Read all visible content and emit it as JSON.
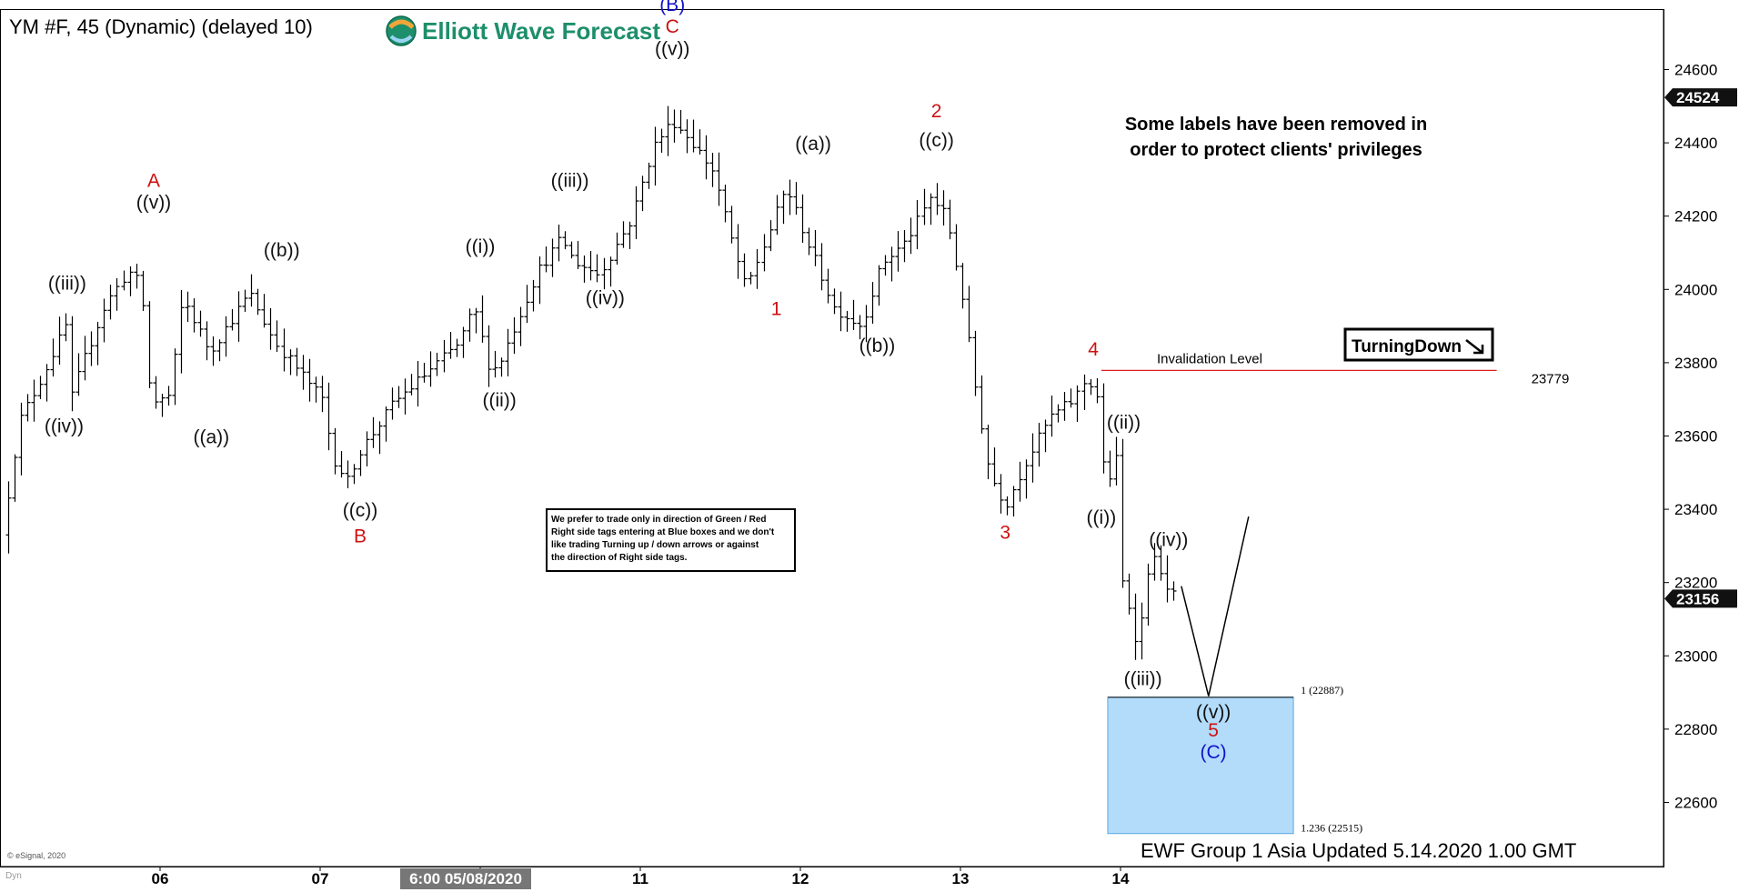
{
  "header": {
    "symbol_title": "YM #F, 45 (Dynamic) (delayed 10)",
    "logo_text": "Elliott Wave Forecast"
  },
  "notes": {
    "labels_removed": [
      "Some labels have been removed in",
      "order to protect clients' privileges"
    ],
    "trade_note": [
      "We prefer to trade only in direction of Green / Red",
      "Right side tags entering at Blue boxes and we don't",
      "like trading Turning up / down arrows or against",
      "the direction of Right side tags."
    ],
    "turning_badge": "TurningDown",
    "footer": "EWF Group 1 Asia Updated 5.14.2020 1.00 GMT",
    "esignal": "© eSignal, 2020",
    "dyn": "Dyn"
  },
  "chart_data": {
    "type": "bar",
    "title": "YM #F, 45 (Dynamic) (delayed 10)",
    "xlabel": "",
    "ylabel": "",
    "ylim": [
      22425,
      24765
    ],
    "y_ticks": [
      22600,
      22800,
      23000,
      23200,
      23400,
      23600,
      23800,
      24000,
      24200,
      24400,
      24600
    ],
    "x_ticks": [
      {
        "label": "06",
        "t": 5.0
      },
      {
        "label": "07",
        "t": 6.0
      },
      {
        "label": "6:00 05/08/2020",
        "t": 7.0,
        "highlight": true
      },
      {
        "label": "11",
        "t": 8.0
      },
      {
        "label": "12",
        "t": 9.0
      },
      {
        "label": "13",
        "t": 10.0
      },
      {
        "label": "14",
        "t": 11.0
      }
    ],
    "price_tags": [
      {
        "label": "24524",
        "value": 24524
      },
      {
        "label": "23156",
        "value": 23156
      }
    ],
    "price_path": [
      [
        4.05,
        23330
      ],
      [
        4.16,
        23640
      ],
      [
        4.3,
        23760
      ],
      [
        4.45,
        23900
      ],
      [
        4.47,
        23680
      ],
      [
        4.55,
        23790
      ],
      [
        4.7,
        23960
      ],
      [
        4.84,
        24050
      ],
      [
        4.92,
        24010
      ],
      [
        4.98,
        23690
      ],
      [
        5.1,
        23710
      ],
      [
        5.18,
        23980
      ],
      [
        5.35,
        23830
      ],
      [
        5.6,
        23990
      ],
      [
        5.75,
        23860
      ],
      [
        5.92,
        23770
      ],
      [
        6.05,
        23700
      ],
      [
        6.12,
        23540
      ],
      [
        6.22,
        23470
      ],
      [
        6.26,
        23540
      ],
      [
        6.5,
        23690
      ],
      [
        6.9,
        23850
      ],
      [
        7.0,
        23950
      ],
      [
        7.1,
        23780
      ],
      [
        7.15,
        23790
      ],
      [
        7.4,
        24050
      ],
      [
        7.55,
        24140
      ],
      [
        7.62,
        24080
      ],
      [
        7.78,
        24040
      ],
      [
        7.98,
        24190
      ],
      [
        8.12,
        24390
      ],
      [
        8.24,
        24460
      ],
      [
        8.35,
        24410
      ],
      [
        8.5,
        24320
      ],
      [
        8.6,
        24150
      ],
      [
        8.7,
        24000
      ],
      [
        8.82,
        24130
      ],
      [
        8.95,
        24280
      ],
      [
        9.1,
        24110
      ],
      [
        9.25,
        23950
      ],
      [
        9.42,
        23900
      ],
      [
        9.55,
        24070
      ],
      [
        9.7,
        24130
      ],
      [
        9.85,
        24250
      ],
      [
        9.95,
        24200
      ],
      [
        10.05,
        23980
      ],
      [
        10.12,
        23760
      ],
      [
        10.22,
        23500
      ],
      [
        10.32,
        23410
      ],
      [
        10.45,
        23530
      ],
      [
        10.6,
        23650
      ],
      [
        10.75,
        23700
      ],
      [
        10.83,
        23760
      ],
      [
        10.9,
        23700
      ],
      [
        10.95,
        23400
      ],
      [
        11.0,
        23620
      ],
      [
        11.05,
        23200
      ],
      [
        11.1,
        23120
      ],
      [
        11.15,
        23010
      ],
      [
        11.2,
        23230
      ],
      [
        11.27,
        23270
      ],
      [
        11.33,
        23170
      ]
    ],
    "projection_path": [
      [
        11.38,
        23190
      ],
      [
        11.55,
        22890
      ],
      [
        11.8,
        23380
      ]
    ],
    "blue_box": {
      "t0": 10.92,
      "t1": 12.08,
      "top": 22887,
      "bottom": 22515,
      "top_label": "1 (22887)",
      "bottom_label": "1.236 (22515)"
    },
    "invalidation": {
      "label": "Invalidation Level",
      "value": 23779,
      "value_label": "23779",
      "t0": 10.88,
      "t1": 13.35
    },
    "annotations": [
      {
        "text": "(B)",
        "t": 8.2,
        "y": 24760,
        "color": "#1111cc"
      },
      {
        "text": "C",
        "t": 8.2,
        "y": 24700,
        "color": "#cc1111"
      },
      {
        "text": "((v))",
        "t": 8.2,
        "y": 24640,
        "color": "#111111"
      },
      {
        "text": "A",
        "t": 4.96,
        "y": 24280,
        "color": "#cc1111"
      },
      {
        "text": "((v))",
        "t": 4.96,
        "y": 24220,
        "color": "#111111"
      },
      {
        "text": "((iii))",
        "t": 4.42,
        "y": 24000,
        "color": "#111111"
      },
      {
        "text": "((iv))",
        "t": 4.4,
        "y": 23610,
        "color": "#111111"
      },
      {
        "text": "((a))",
        "t": 5.32,
        "y": 23580,
        "color": "#111111"
      },
      {
        "text": "((b))",
        "t": 5.76,
        "y": 24090,
        "color": "#111111"
      },
      {
        "text": "((c))",
        "t": 6.25,
        "y": 23380,
        "color": "#111111"
      },
      {
        "text": "B",
        "t": 6.25,
        "y": 23310,
        "color": "#cc1111"
      },
      {
        "text": "((i))",
        "t": 7.0,
        "y": 24100,
        "color": "#111111"
      },
      {
        "text": "((ii))",
        "t": 7.12,
        "y": 23680,
        "color": "#111111"
      },
      {
        "text": "((iii))",
        "t": 7.56,
        "y": 24280,
        "color": "#111111"
      },
      {
        "text": "((iv))",
        "t": 7.78,
        "y": 23960,
        "color": "#111111"
      },
      {
        "text": "((a))",
        "t": 9.08,
        "y": 24380,
        "color": "#111111"
      },
      {
        "text": "1",
        "t": 8.85,
        "y": 23930,
        "color": "#cc1111"
      },
      {
        "text": "((b))",
        "t": 9.48,
        "y": 23830,
        "color": "#111111"
      },
      {
        "text": "2",
        "t": 9.85,
        "y": 24470,
        "color": "#cc1111"
      },
      {
        "text": "((c))",
        "t": 9.85,
        "y": 24390,
        "color": "#111111"
      },
      {
        "text": "3",
        "t": 10.28,
        "y": 23320,
        "color": "#cc1111"
      },
      {
        "text": "4",
        "t": 10.83,
        "y": 23820,
        "color": "#cc1111"
      },
      {
        "text": "((ii))",
        "t": 11.02,
        "y": 23620,
        "color": "#111111"
      },
      {
        "text": "((i))",
        "t": 10.88,
        "y": 23360,
        "color": "#111111"
      },
      {
        "text": "((iv))",
        "t": 11.3,
        "y": 23300,
        "color": "#111111"
      },
      {
        "text": "((iii))",
        "t": 11.14,
        "y": 22920,
        "color": "#111111"
      },
      {
        "text": "((v))",
        "t": 11.58,
        "y": 22830,
        "color": "#111111"
      },
      {
        "text": "5",
        "t": 11.58,
        "y": 22780,
        "color": "#cc1111"
      },
      {
        "text": "(C)",
        "t": 11.58,
        "y": 22720,
        "color": "#1111cc"
      }
    ]
  }
}
